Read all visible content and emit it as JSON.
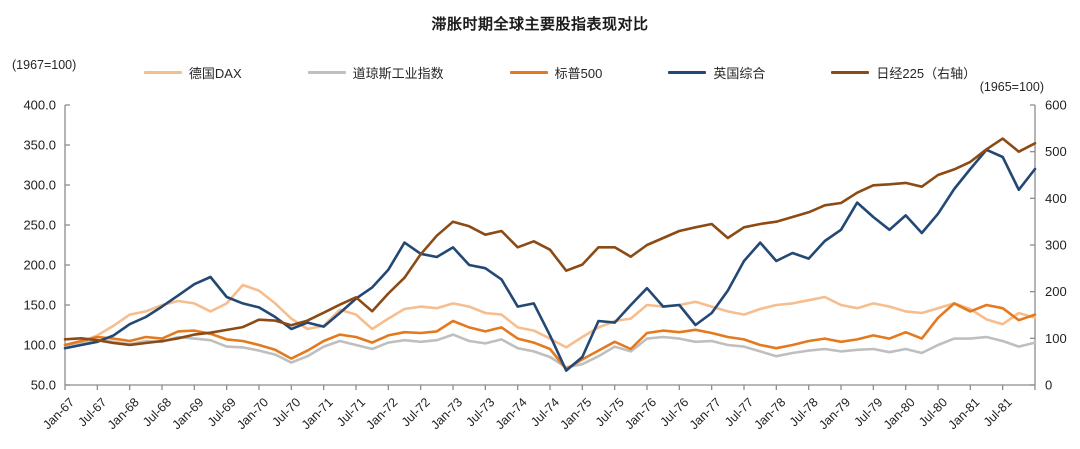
{
  "title": "滞胀时期全球主要股指表现对比",
  "axis_notes": {
    "left": "(1967=100)",
    "right": "(1965=100)"
  },
  "legend": [
    {
      "id": "dax",
      "label": "德国DAX",
      "color": "#F6BE8F"
    },
    {
      "id": "dow",
      "label": "道琼斯工业指数",
      "color": "#BFBFBF"
    },
    {
      "id": "sp500",
      "label": "标普500",
      "color": "#E47A20"
    },
    {
      "id": "uk",
      "label": "英国综合",
      "color": "#234874"
    },
    {
      "id": "nikkei",
      "label": "日经225（右轴）",
      "color": "#8C4B15"
    }
  ],
  "chart_data": {
    "type": "line",
    "title": "滞胀时期全球主要股指表现对比",
    "grid": false,
    "legend_position": "top",
    "x_unit": "months since Jan-1967",
    "x_tick_interval_months": 6,
    "x_tick_labels": [
      "Jan-67",
      "Jul-67",
      "Jan-68",
      "Jul-68",
      "Jan-69",
      "Jul-69",
      "Jan-70",
      "Jul-70",
      "Jan-71",
      "Jul-71",
      "Jan-72",
      "Jul-72",
      "Jan-73",
      "Jul-73",
      "Jan-74",
      "Jul-74",
      "Jan-75",
      "Jul-75",
      "Jan-76",
      "Jul-76",
      "Jan-77",
      "Jul-77",
      "Jan-78",
      "Jul-78",
      "Jan-79",
      "Jul-79",
      "Jan-80",
      "Jul-80",
      "Jan-81",
      "Jul-81"
    ],
    "left_axis": {
      "note": "(1967=100)",
      "range": [
        50,
        400
      ],
      "ticks": [
        400,
        350,
        300,
        250,
        200,
        150,
        100,
        50
      ],
      "tick_labels": [
        "400.0",
        "350.0",
        "300.0",
        "250.0",
        "200.0",
        "150.0",
        "100.0",
        "50.0"
      ]
    },
    "right_axis": {
      "note": "(1965=100)",
      "range": [
        0,
        600
      ],
      "ticks": [
        600,
        500,
        400,
        300,
        200,
        100,
        0
      ],
      "tick_labels": [
        "600",
        "500",
        "400",
        "300",
        "200",
        "100",
        "0"
      ]
    },
    "sample_months": [
      0,
      3,
      6,
      9,
      12,
      15,
      18,
      21,
      24,
      27,
      30,
      33,
      36,
      39,
      42,
      45,
      48,
      51,
      54,
      57,
      60,
      63,
      66,
      69,
      72,
      75,
      78,
      81,
      84,
      87,
      90,
      93,
      96,
      99,
      102,
      105,
      108,
      111,
      114,
      117,
      120,
      123,
      126,
      129,
      132,
      135,
      138,
      141,
      144,
      147,
      150,
      153,
      156,
      159,
      162,
      165,
      168,
      171,
      174,
      177,
      180
    ],
    "series": [
      {
        "id": "dax",
        "name": "德国DAX",
        "axis": "left",
        "color": "#F6BE8F",
        "values": [
          100,
          104,
          112,
          124,
          138,
          142,
          150,
          155,
          152,
          142,
          152,
          175,
          168,
          152,
          133,
          120,
          124,
          144,
          138,
          120,
          133,
          145,
          148,
          146,
          152,
          148,
          140,
          138,
          122,
          118,
          108,
          97,
          110,
          122,
          130,
          133,
          150,
          148,
          150,
          154,
          148,
          142,
          138,
          145,
          150,
          152,
          156,
          160,
          150,
          146,
          152,
          148,
          142,
          140,
          146,
          152,
          145,
          132,
          126,
          140,
          134
        ]
      },
      {
        "id": "dow",
        "name": "道琼斯工业指数",
        "axis": "left",
        "color": "#BFBFBF",
        "values": [
          100,
          103,
          106,
          104,
          101,
          105,
          104,
          110,
          108,
          106,
          98,
          97,
          93,
          88,
          78,
          86,
          98,
          105,
          100,
          95,
          103,
          106,
          104,
          106,
          113,
          105,
          102,
          107,
          96,
          92,
          85,
          72,
          76,
          86,
          98,
          92,
          108,
          110,
          108,
          104,
          105,
          100,
          98,
          92,
          86,
          90,
          93,
          95,
          92,
          94,
          95,
          91,
          95,
          90,
          100,
          108,
          108,
          110,
          105,
          98,
          103
        ]
      },
      {
        "id": "sp500",
        "name": "标普500",
        "axis": "left",
        "color": "#E47A20",
        "values": [
          100,
          105,
          110,
          108,
          105,
          110,
          108,
          117,
          118,
          114,
          107,
          105,
          100,
          94,
          83,
          93,
          105,
          113,
          110,
          103,
          112,
          116,
          115,
          117,
          130,
          122,
          117,
          122,
          108,
          103,
          95,
          70,
          82,
          93,
          104,
          95,
          115,
          118,
          116,
          119,
          115,
          110,
          107,
          100,
          96,
          100,
          105,
          108,
          104,
          107,
          112,
          108,
          116,
          108,
          134,
          152,
          142,
          150,
          146,
          131,
          138
        ]
      },
      {
        "id": "uk",
        "name": "英国综合",
        "axis": "left",
        "color": "#234874",
        "values": [
          96,
          100,
          104,
          112,
          126,
          135,
          148,
          162,
          176,
          185,
          160,
          152,
          147,
          135,
          120,
          128,
          123,
          140,
          158,
          172,
          194,
          228,
          214,
          210,
          222,
          200,
          196,
          182,
          148,
          152,
          112,
          68,
          85,
          130,
          128,
          150,
          171,
          148,
          150,
          125,
          140,
          168,
          205,
          228,
          205,
          215,
          208,
          230,
          244,
          278,
          260,
          244,
          262,
          240,
          264,
          295,
          320,
          344,
          335,
          294,
          320
        ]
      },
      {
        "id": "nikkei",
        "name": "日经225（右轴）",
        "axis": "right",
        "color": "#8C4B15",
        "values": [
          98,
          100,
          96,
          90,
          86,
          90,
          94,
          100,
          108,
          112,
          118,
          124,
          140,
          138,
          128,
          138,
          155,
          172,
          188,
          158,
          196,
          230,
          280,
          320,
          350,
          340,
          322,
          330,
          295,
          308,
          290,
          245,
          258,
          295,
          295,
          275,
          300,
          315,
          330,
          338,
          345,
          315,
          338,
          345,
          350,
          360,
          370,
          385,
          390,
          412,
          428,
          430,
          433,
          425,
          450,
          462,
          478,
          505,
          528,
          500,
          518
        ]
      }
    ]
  }
}
